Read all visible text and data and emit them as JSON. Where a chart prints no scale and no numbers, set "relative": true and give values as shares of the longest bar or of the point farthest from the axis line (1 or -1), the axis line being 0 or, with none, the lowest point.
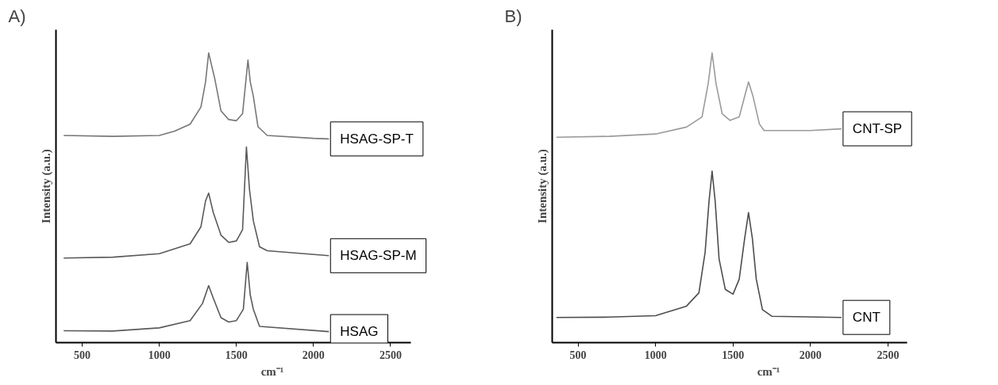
{
  "chart_data": [
    {
      "type": "line",
      "title": "A)",
      "xlabel": "cm⁻¹",
      "ylabel": "Intensity (a.u.)",
      "relative": true,
      "xlim": [
        330,
        2630
      ],
      "xticks": [
        500,
        1000,
        1500,
        2000,
        2500
      ],
      "series": [
        {
          "name": "HSAG-SP-T",
          "color": "#777777",
          "x": [
            380,
            700,
            1000,
            1100,
            1200,
            1270,
            1300,
            1320,
            1360,
            1400,
            1450,
            1500,
            1540,
            1575,
            1590,
            1610,
            1640,
            1700,
            2000,
            2100
          ],
          "values": [
            0.715,
            0.712,
            0.715,
            0.73,
            0.754,
            0.813,
            0.9,
            1.0,
            0.91,
            0.8,
            0.77,
            0.766,
            0.79,
            0.975,
            0.9,
            0.85,
            0.745,
            0.715,
            0.705,
            0.703
          ]
        },
        {
          "name": "HSAG-SP-M",
          "color": "#5a5a5a",
          "x": [
            380,
            700,
            1000,
            1200,
            1270,
            1300,
            1320,
            1350,
            1400,
            1450,
            1500,
            1540,
            1565,
            1585,
            1610,
            1650,
            1700,
            2100
          ],
          "values": [
            0.292,
            0.295,
            0.307,
            0.341,
            0.4,
            0.489,
            0.516,
            0.449,
            0.371,
            0.346,
            0.351,
            0.39,
            0.675,
            0.528,
            0.42,
            0.331,
            0.317,
            0.3
          ]
        },
        {
          "name": "HSAG",
          "color": "#5a5a5a",
          "x": [
            380,
            700,
            1000,
            1200,
            1280,
            1320,
            1350,
            1400,
            1450,
            1500,
            1545,
            1570,
            1590,
            1610,
            1650,
            2100
          ],
          "values": [
            0.041,
            0.04,
            0.051,
            0.076,
            0.135,
            0.197,
            0.154,
            0.086,
            0.071,
            0.076,
            0.115,
            0.277,
            0.164,
            0.115,
            0.056,
            0.038
          ]
        }
      ]
    },
    {
      "type": "line",
      "title": "B)",
      "xlabel": "cm⁻¹",
      "ylabel": "Intensity (a.u.)",
      "relative": true,
      "xlim": [
        333,
        2622
      ],
      "xticks": [
        500,
        1000,
        1500,
        2000,
        2500
      ],
      "series": [
        {
          "name": "CNT-SP",
          "color": "#9a9a9a",
          "x": [
            360,
            700,
            1000,
            1200,
            1300,
            1340,
            1365,
            1390,
            1430,
            1480,
            1540,
            1580,
            1600,
            1630,
            1670,
            1700,
            2000,
            2200
          ],
          "values": [
            0.709,
            0.712,
            0.72,
            0.744,
            0.779,
            0.895,
            1.0,
            0.895,
            0.79,
            0.767,
            0.779,
            0.86,
            0.9,
            0.848,
            0.755,
            0.732,
            0.732,
            0.738
          ]
        },
        {
          "name": "CNT",
          "color": "#4d4d4d",
          "x": [
            360,
            700,
            1000,
            1200,
            1280,
            1320,
            1345,
            1365,
            1385,
            1410,
            1450,
            1500,
            1540,
            1575,
            1600,
            1625,
            1650,
            1690,
            1750,
            2200
          ],
          "values": [
            0.087,
            0.088,
            0.093,
            0.126,
            0.172,
            0.312,
            0.487,
            0.592,
            0.487,
            0.289,
            0.184,
            0.167,
            0.219,
            0.359,
            0.449,
            0.359,
            0.219,
            0.114,
            0.091,
            0.087
          ]
        }
      ]
    }
  ]
}
